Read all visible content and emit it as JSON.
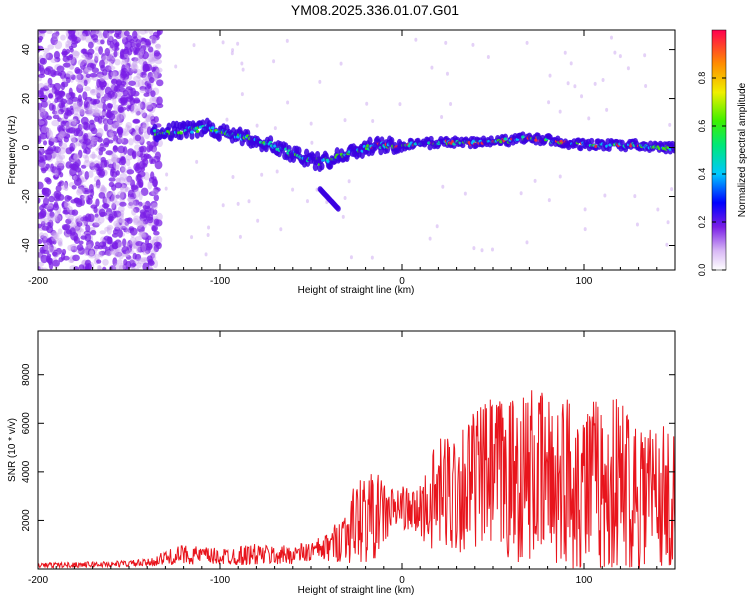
{
  "title": "YM08.2025.336.01.07.G01",
  "colors": {
    "snr_line": "#e8141c",
    "cloud": "#7a1ee6",
    "axis": "#000000"
  },
  "chart_data": [
    {
      "type": "heatmap",
      "xlabel": "Height of straight line (km)",
      "ylabel": "Frequency (Hz)",
      "xlim": [
        -200,
        150
      ],
      "ylim": [
        -50,
        48
      ],
      "xticks": [
        -200,
        -100,
        0,
        100
      ],
      "yticks": [
        -40,
        -20,
        0,
        20,
        40
      ],
      "colorbar": {
        "label": "Normalized spectral amplitude",
        "range": [
          0,
          1
        ],
        "ticks": [
          0.0,
          0.2,
          0.4,
          0.6,
          0.8
        ]
      },
      "ridge": {
        "x": [
          -135,
          -120,
          -105,
          -95,
          -85,
          -75,
          -65,
          -55,
          -45,
          -35,
          -25,
          -15,
          -5,
          0,
          20,
          40,
          60,
          70,
          80,
          90,
          100,
          110,
          120,
          130,
          140,
          150
        ],
        "y": [
          6,
          7,
          8,
          5,
          4,
          2,
          -1,
          -4,
          -6,
          -4,
          -1,
          1,
          1,
          1,
          2,
          2,
          3,
          4,
          3,
          2,
          1,
          1,
          1,
          1,
          0,
          0
        ]
      },
      "branch": {
        "x": [
          -45,
          -40,
          -35
        ],
        "y": [
          -17,
          -21,
          -25
        ]
      }
    },
    {
      "type": "line",
      "xlabel": "Height of straight line (km)",
      "ylabel": "SNR (10 * v/v)",
      "xlim": [
        -200,
        150
      ],
      "ylim": [
        0,
        9800
      ],
      "xticks": [
        -200,
        -100,
        0,
        100
      ],
      "yticks": [
        2000,
        4000,
        6000,
        8000
      ],
      "envelope": {
        "x": [
          -200,
          -160,
          -140,
          -130,
          -120,
          -100,
          -90,
          -80,
          -70,
          -60,
          -50,
          -40,
          -35,
          -30,
          -25,
          -20,
          -15,
          -10,
          -5,
          0,
          5,
          10,
          15,
          20,
          25,
          30,
          40,
          50,
          60,
          70,
          80,
          90,
          100,
          110,
          120,
          130,
          140,
          150
        ],
        "mean": [
          150,
          200,
          250,
          450,
          600,
          500,
          550,
          600,
          550,
          600,
          700,
          900,
          1200,
          1500,
          2000,
          2100,
          2200,
          2300,
          2400,
          2600,
          2300,
          2400,
          2700,
          3000,
          3200,
          3300,
          3700,
          3900,
          3700,
          3900,
          3700,
          3700,
          3500,
          3500,
          3500,
          3300,
          3100,
          2800
        ],
        "amp": [
          100,
          120,
          150,
          300,
          400,
          350,
          400,
          450,
          400,
          400,
          450,
          600,
          900,
          1300,
          1700,
          1900,
          1800,
          1400,
          1000,
          900,
          900,
          1200,
          1900,
          2300,
          2600,
          2700,
          2900,
          3200,
          3500,
          3600,
          3500,
          3600,
          3600,
          3600,
          3700,
          3400,
          3200,
          2800
        ]
      }
    }
  ]
}
